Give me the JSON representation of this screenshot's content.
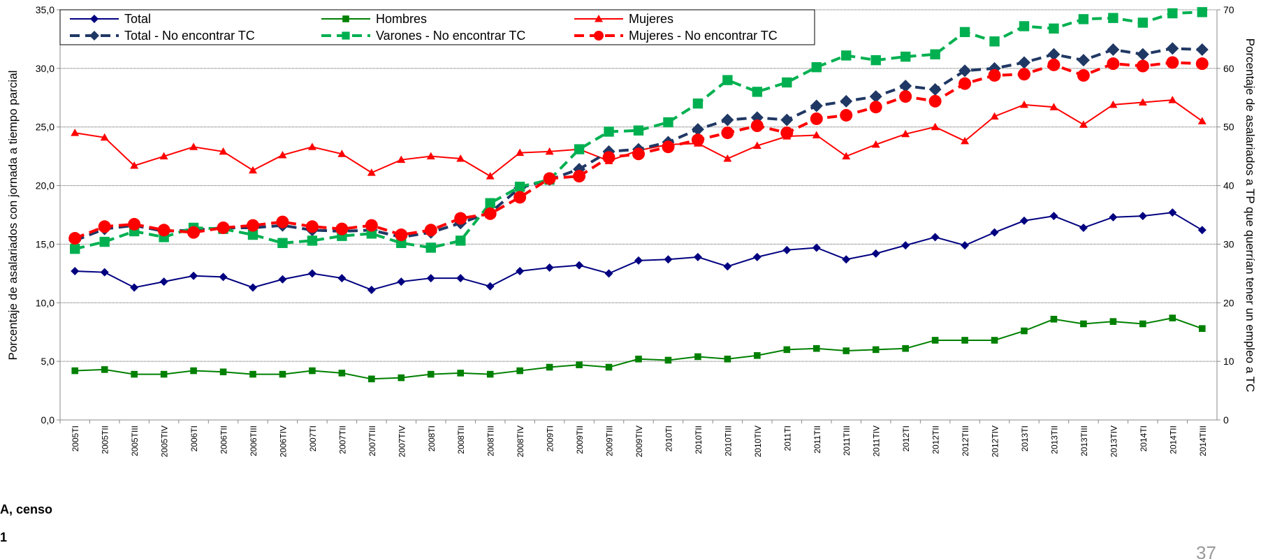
{
  "chart_data": {
    "type": "line",
    "y_label": "Porcentaje de asalariados con jornada a tiempo parcial",
    "y2_label": "Porcentaje de asalariados a TP que querrían tener un empleo a TC",
    "categories": [
      "2005TI",
      "2005TII",
      "2005TIII",
      "2005TIV",
      "2006TI",
      "2006TII",
      "2006TIII",
      "2006TIV",
      "2007TI",
      "2007TII",
      "2007TIII",
      "2007TIV",
      "2008TI",
      "2008TII",
      "2008TIII",
      "2008TIV",
      "2009TI",
      "2009TII",
      "2009TIII",
      "2009TIV",
      "2010TI",
      "2010TII",
      "2010TIII",
      "2010TIV",
      "2011TI",
      "2011TII",
      "2011TIII",
      "2011TIV",
      "2012TI",
      "2012TII",
      "2012TIII",
      "2012TIV",
      "2013TI",
      "2013TII",
      "2013TIII",
      "2013TIV",
      "2014TI",
      "2014TII",
      "2014TIII"
    ],
    "ylim": [
      0,
      35
    ],
    "yticks": [
      {
        "value": 0,
        "label": "0,0"
      },
      {
        "value": 5,
        "label": "5,0"
      },
      {
        "value": 10,
        "label": "10,0"
      },
      {
        "value": 15,
        "label": "15,0"
      },
      {
        "value": 20,
        "label": "20,0"
      },
      {
        "value": 25,
        "label": "25,0"
      },
      {
        "value": 30,
        "label": "30,0"
      },
      {
        "value": 35,
        "label": "35,0"
      }
    ],
    "y2lim": [
      0,
      70
    ],
    "y2ticks": [
      0,
      10,
      20,
      30,
      40,
      50,
      60,
      70
    ],
    "grid": true,
    "legend": "top-left",
    "series": [
      {
        "name": "Total",
        "color": "#000080",
        "marker": "diamond",
        "dash": false,
        "values": [
          12.7,
          12.6,
          11.3,
          11.8,
          12.3,
          12.2,
          11.3,
          12.0,
          12.5,
          12.1,
          11.1,
          11.8,
          12.1,
          12.1,
          11.4,
          12.7,
          13.0,
          13.2,
          12.5,
          13.6,
          13.7,
          13.9,
          13.1,
          13.9,
          14.5,
          14.7,
          13.7,
          14.2,
          14.9,
          15.6,
          14.9,
          16.0,
          17.0,
          17.4,
          16.4,
          17.3,
          17.4,
          17.7,
          16.2
        ]
      },
      {
        "name": "Hombres",
        "color": "#008000",
        "marker": "square",
        "dash": false,
        "values": [
          4.2,
          4.3,
          3.9,
          3.9,
          4.2,
          4.1,
          3.9,
          3.9,
          4.2,
          4.0,
          3.5,
          3.6,
          3.9,
          4.0,
          3.9,
          4.2,
          4.5,
          4.7,
          4.5,
          5.2,
          5.1,
          5.4,
          5.2,
          5.5,
          6.0,
          6.1,
          5.9,
          6.0,
          6.1,
          6.8,
          6.8,
          6.8,
          7.6,
          8.6,
          8.2,
          8.4,
          8.2,
          8.7,
          7.8
        ]
      },
      {
        "name": "Mujeres",
        "color": "#ff0000",
        "marker": "triangle",
        "dash": false,
        "values": [
          24.5,
          24.1,
          21.7,
          22.5,
          23.3,
          22.9,
          21.3,
          22.6,
          23.3,
          22.7,
          21.1,
          22.2,
          22.5,
          22.3,
          20.8,
          22.8,
          22.9,
          23.1,
          22.1,
          23.0,
          23.5,
          23.6,
          22.3,
          23.4,
          24.2,
          24.3,
          22.5,
          23.5,
          24.4,
          25.0,
          23.8,
          25.9,
          26.9,
          26.7,
          25.2,
          26.9,
          27.1,
          27.3,
          25.5
        ]
      },
      {
        "name": "Total - No encontrar TC",
        "color": "#203864",
        "marker": "diamond",
        "dash": true,
        "axis": "y2",
        "values": [
          30.6,
          32.6,
          33.2,
          32.2,
          32.4,
          32.8,
          32.8,
          33.2,
          32.4,
          32.2,
          32.4,
          31.2,
          32.0,
          33.6,
          35.4,
          39.6,
          41.0,
          42.8,
          45.8,
          46.2,
          47.4,
          49.6,
          51.2,
          51.6,
          51.2,
          53.6,
          54.4,
          55.2,
          57.0,
          56.4,
          59.6,
          60.0,
          61.0,
          62.4,
          61.4,
          63.2,
          62.4,
          63.4,
          63.2
        ]
      },
      {
        "name": "Varones - No encontrar TC",
        "color": "#00b050",
        "marker": "square",
        "dash": true,
        "axis": "y2",
        "values": [
          29.2,
          30.4,
          32.2,
          31.2,
          32.8,
          32.6,
          31.6,
          30.2,
          30.6,
          31.4,
          31.8,
          30.2,
          29.4,
          30.6,
          37.0,
          39.8,
          41.0,
          46.2,
          49.2,
          49.4,
          50.8,
          54.0,
          58.0,
          56.0,
          57.6,
          60.2,
          62.2,
          61.4,
          62.0,
          62.4,
          66.2,
          64.6,
          67.2,
          66.8,
          68.4,
          68.6,
          67.8,
          69.4,
          69.6
        ]
      },
      {
        "name": "Mujeres - No encontrar TC",
        "color": "#ff0000",
        "marker": "circle",
        "dash": true,
        "axis": "y2",
        "values": [
          31.0,
          33.0,
          33.4,
          32.4,
          32.0,
          32.8,
          33.2,
          33.8,
          33.0,
          32.6,
          33.2,
          31.6,
          32.4,
          34.4,
          35.2,
          38.0,
          41.2,
          41.6,
          44.8,
          45.4,
          46.6,
          47.8,
          49.0,
          50.2,
          49.0,
          51.4,
          52.0,
          53.4,
          55.2,
          54.4,
          57.4,
          58.8,
          59.0,
          60.6,
          58.8,
          60.8,
          60.4,
          61.0,
          60.8
        ]
      }
    ]
  },
  "cropped_text": [
    "A, censo",
    "1"
  ],
  "page_number": "37"
}
